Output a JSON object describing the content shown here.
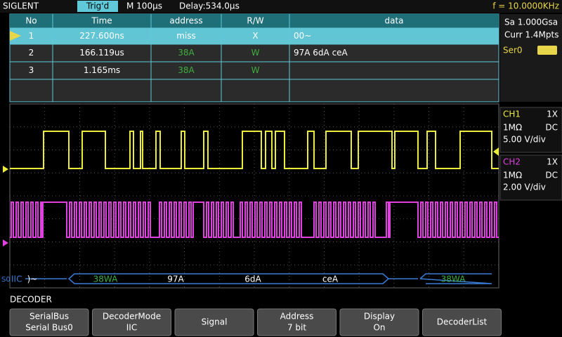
{
  "header": {
    "brand": "SIGLENT",
    "trigger": "Trig'd",
    "timebase": "M 100μs",
    "delay": "Delay:534.0μs",
    "frequency": "f = 10.0000KHz"
  },
  "table": {
    "columns": [
      "No",
      "Time",
      "address",
      "R/W",
      "data"
    ],
    "rows": [
      [
        "1",
        "227.600ns",
        "miss",
        "X",
        "00~"
      ],
      [
        "2",
        "166.119us",
        "38A",
        "W",
        "97A 6dA ceA"
      ],
      [
        "3",
        "1.165ms",
        "38A",
        "W"
      ]
    ]
  },
  "side": {
    "sample_rate": "Sa 1.000Gsa",
    "memory": "Curr 1.4Mpts",
    "serial": "Ser0",
    "channels": [
      {
        "name": "CH1",
        "probe": "1X",
        "impedance": "1MΩ",
        "coupling": "DC",
        "scale": "5.00 V/div"
      },
      {
        "name": "CH2",
        "probe": "1X",
        "impedance": "1MΩ",
        "coupling": "DC",
        "scale": "2.00 V/div"
      }
    ]
  },
  "bus": {
    "label": "IIC",
    "segments": [
      ")~",
      "38WA",
      "97A",
      "6dA",
      "ceA",
      "38WA"
    ]
  },
  "menu": {
    "title": "DECODER",
    "buttons": [
      [
        "SerialBus",
        "Serial Bus0"
      ],
      [
        "DecoderMode",
        "IIC"
      ],
      [
        "Signal"
      ],
      [
        "Address",
        "7 bit"
      ],
      [
        "Display",
        "On"
      ],
      [
        "DecoderList"
      ]
    ]
  }
}
